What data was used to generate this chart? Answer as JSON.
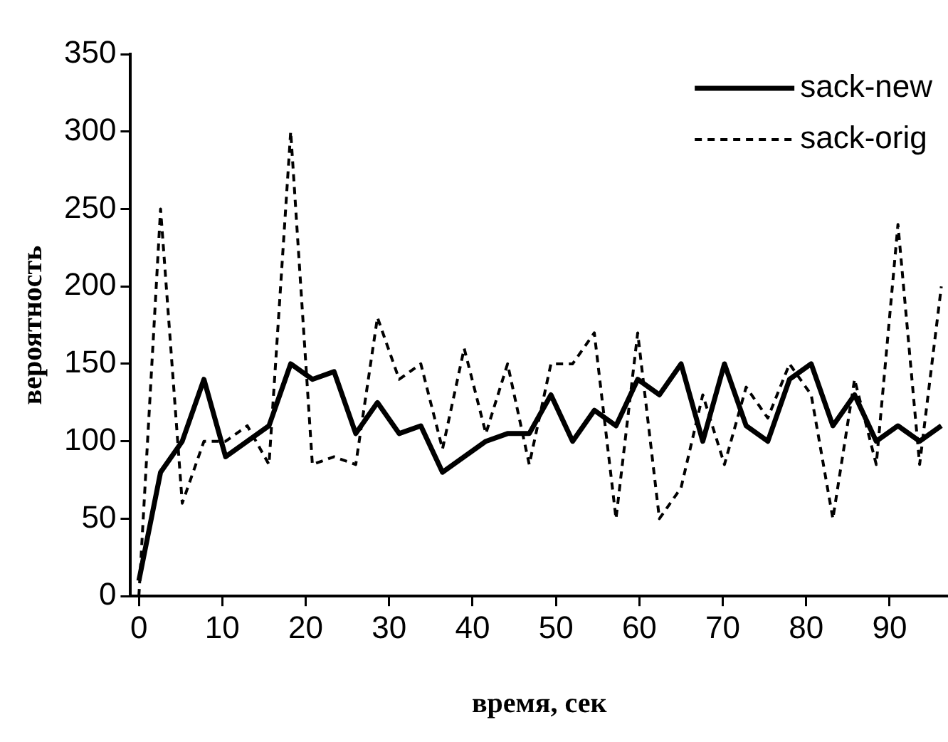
{
  "chart_data": {
    "type": "line",
    "xlabel": "время, сек",
    "ylabel": "вероятность",
    "x": [
      0,
      2.6,
      5.2,
      7.8,
      10.4,
      13,
      15.6,
      18.2,
      20.8,
      23.4,
      26,
      28.6,
      31.2,
      33.8,
      36.4,
      39,
      41.6,
      44.2,
      46.8,
      49.4,
      52,
      54.6,
      57.2,
      59.8,
      62.4,
      65,
      67.6,
      70.2,
      72.8,
      75.4,
      78,
      80.6,
      83.2,
      85.8,
      88.4,
      91,
      93.6,
      96.2
    ],
    "series": [
      {
        "name": "sack-new",
        "color": "#000000",
        "line_style": "solid",
        "values": [
          10,
          80,
          100,
          140,
          90,
          100,
          110,
          150,
          140,
          145,
          105,
          125,
          105,
          110,
          80,
          90,
          100,
          105,
          105,
          130,
          100,
          120,
          110,
          140,
          130,
          150,
          100,
          150,
          110,
          100,
          140,
          150,
          110,
          130,
          100,
          110,
          100,
          110
        ]
      },
      {
        "name": "sack-orig",
        "color": "#000000",
        "line_style": "dashed",
        "values": [
          0,
          250,
          60,
          100,
          100,
          110,
          85,
          300,
          85,
          90,
          85,
          180,
          140,
          150,
          95,
          160,
          105,
          150,
          85,
          150,
          150,
          170,
          50,
          170,
          50,
          70,
          130,
          85,
          135,
          115,
          150,
          130,
          50,
          140,
          85,
          240,
          85,
          200
        ]
      }
    ],
    "xlim": [
      -1,
      97
    ],
    "ylim": [
      0,
      350
    ],
    "xticks": [
      0,
      10,
      20,
      30,
      40,
      50,
      60,
      70,
      80,
      90
    ],
    "yticks": [
      0,
      50,
      100,
      150,
      200,
      250,
      300,
      350
    ],
    "grid": false,
    "legend": "top right",
    "marker": "none"
  }
}
